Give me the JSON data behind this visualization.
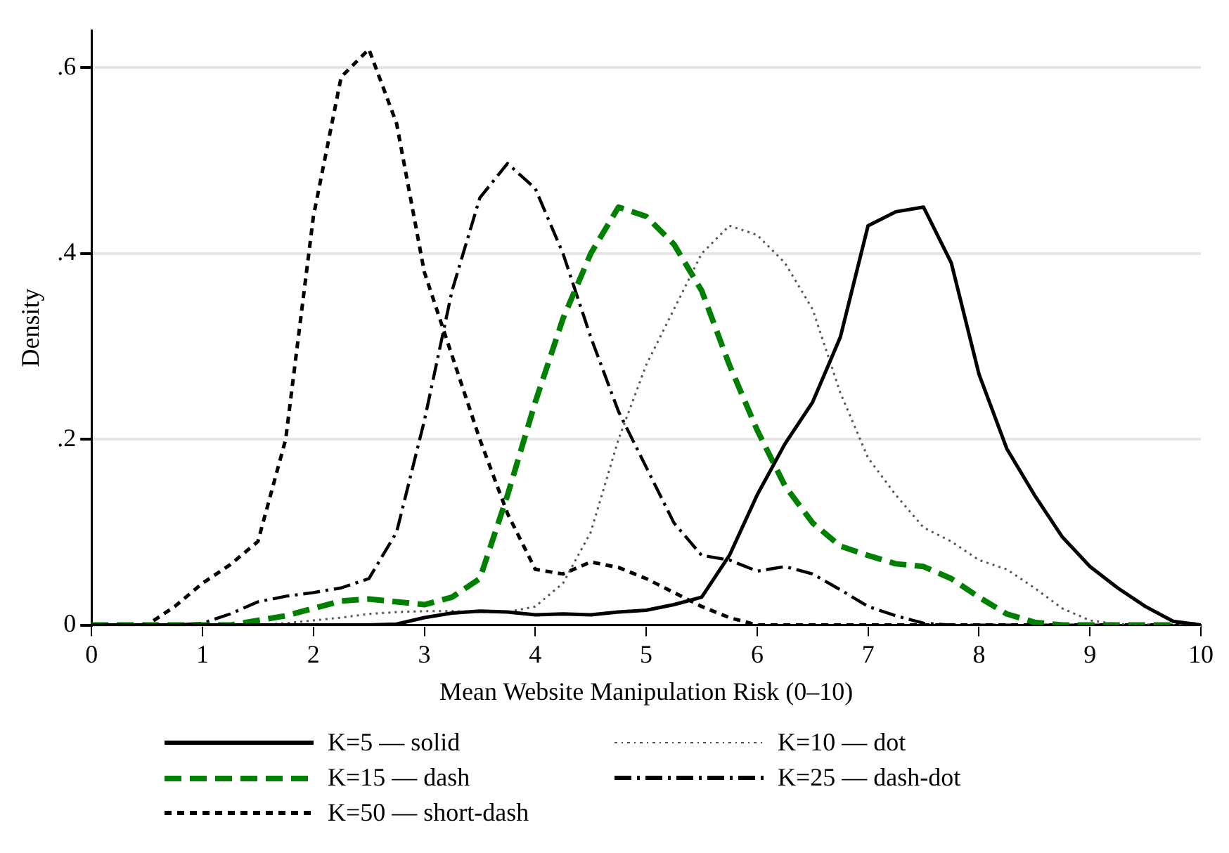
{
  "chart_data": {
    "type": "line",
    "xlabel": "Mean Website Manipulation Risk (0–10)",
    "ylabel": "Density",
    "x": [
      0,
      0.25,
      0.5,
      0.75,
      1,
      1.25,
      1.5,
      1.75,
      2,
      2.25,
      2.5,
      2.75,
      3,
      3.25,
      3.5,
      3.75,
      4,
      4.25,
      4.5,
      4.75,
      5,
      5.25,
      5.5,
      5.75,
      6,
      6.25,
      6.5,
      6.75,
      7,
      7.25,
      7.5,
      7.75,
      8,
      8.25,
      8.5,
      8.75,
      9,
      9.25,
      9.5,
      9.75,
      10
    ],
    "series": [
      {
        "name": "K=5 — solid",
        "color": "#000000",
        "line_style": "solid",
        "values": [
          0,
          0,
          0,
          0,
          0,
          0,
          0,
          0,
          0,
          0,
          0,
          0.001,
          0.008,
          0.013,
          0.015,
          0.014,
          0.011,
          0.012,
          0.011,
          0.014,
          0.016,
          0.022,
          0.03,
          0.075,
          0.14,
          0.195,
          0.24,
          0.31,
          0.43,
          0.445,
          0.45,
          0.39,
          0.27,
          0.19,
          0.14,
          0.095,
          0.063,
          0.04,
          0.02,
          0.004,
          0
        ]
      },
      {
        "name": "K=10 — dot",
        "color": "#555555",
        "line_style": "dotted",
        "values": [
          0,
          0,
          0,
          0,
          0,
          0,
          0,
          0.002,
          0.005,
          0.008,
          0.012,
          0.014,
          0.015,
          0.015,
          0.014,
          0.014,
          0.02,
          0.045,
          0.1,
          0.2,
          0.28,
          0.34,
          0.4,
          0.43,
          0.42,
          0.39,
          0.34,
          0.25,
          0.18,
          0.14,
          0.105,
          0.09,
          0.07,
          0.06,
          0.04,
          0.018,
          0.005,
          0.001,
          0,
          0,
          0
        ]
      },
      {
        "name": "K=15 — dash",
        "color": "#008000",
        "line_style": "dashed",
        "values": [
          0,
          0,
          0,
          0,
          0,
          0,
          0.005,
          0.01,
          0.018,
          0.026,
          0.028,
          0.025,
          0.022,
          0.03,
          0.05,
          0.14,
          0.24,
          0.33,
          0.4,
          0.45,
          0.44,
          0.41,
          0.36,
          0.28,
          0.21,
          0.15,
          0.11,
          0.085,
          0.075,
          0.066,
          0.063,
          0.05,
          0.03,
          0.012,
          0.003,
          0,
          0,
          0,
          0,
          0,
          0
        ]
      },
      {
        "name": "K=25 — dash-dot",
        "color": "#000000",
        "line_style": "dashdot",
        "values": [
          0,
          0,
          0,
          0,
          0.002,
          0.012,
          0.025,
          0.031,
          0.035,
          0.04,
          0.05,
          0.1,
          0.22,
          0.36,
          0.46,
          0.497,
          0.47,
          0.4,
          0.31,
          0.23,
          0.17,
          0.11,
          0.075,
          0.07,
          0.058,
          0.063,
          0.055,
          0.038,
          0.02,
          0.01,
          0.002,
          0,
          0,
          0,
          0,
          0,
          0,
          0,
          0,
          0,
          0
        ]
      },
      {
        "name": "K=50 — short-dash",
        "color": "#000000",
        "line_style": "shortdash",
        "values": [
          0,
          0,
          0,
          0.02,
          0.045,
          0.065,
          0.09,
          0.2,
          0.44,
          0.59,
          0.62,
          0.54,
          0.38,
          0.29,
          0.2,
          0.12,
          0.06,
          0.055,
          0.068,
          0.062,
          0.05,
          0.035,
          0.02,
          0.008,
          0,
          0,
          0,
          0,
          0,
          0,
          0,
          0,
          0,
          0,
          0,
          0,
          0,
          0,
          0,
          0,
          0
        ]
      }
    ],
    "xlim": [
      0,
      10
    ],
    "xticks": [
      0,
      1,
      2,
      3,
      4,
      5,
      6,
      7,
      8,
      9,
      10
    ],
    "ylim": [
      0,
      0.64
    ],
    "yticks": [
      0,
      {
        "value": 0.2,
        "label": ".2"
      },
      {
        "value": 0.4,
        "label": ".4"
      },
      {
        "value": 0.6,
        "label": ".6"
      }
    ],
    "grid": "y",
    "legend": "bottom",
    "marker": "none"
  }
}
